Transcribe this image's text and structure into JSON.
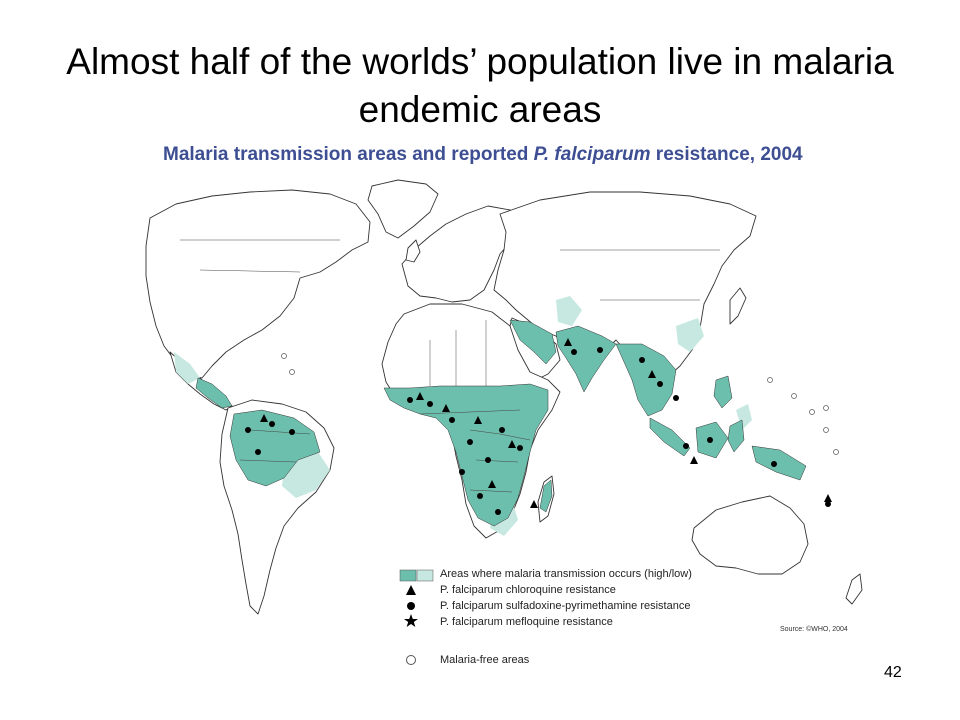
{
  "slide": {
    "title": "Almost half of the worlds’ population live in malaria endemic areas",
    "page_number": "42"
  },
  "map": {
    "title_prefix": "Malaria transmission areas and reported ",
    "title_italic": "P. falciparum",
    "title_suffix": " resistance, 2004",
    "source": "Source: ©WHO, 2004",
    "colors": {
      "high_transmission": "#6dbfad",
      "low_transmission": "#c6e8e0",
      "land_outline": "#333333",
      "title": "#3d4e93"
    }
  },
  "legend": {
    "transmission": "Areas where malaria transmission occurs (high/low)",
    "chloroquine": "P. falciparum chloroquine resistance",
    "sulfadoxine": "P. falciparum sulfadoxine-pyrimethamine resistance",
    "mefloquine": "P. falciparum mefloquine resistance",
    "malaria_free": "Malaria-free areas",
    "icons": {
      "chloroquine": "triangle-icon",
      "sulfadoxine": "circle-icon",
      "mefloquine": "star-icon",
      "malaria_free": "hollow-circle-icon"
    }
  }
}
